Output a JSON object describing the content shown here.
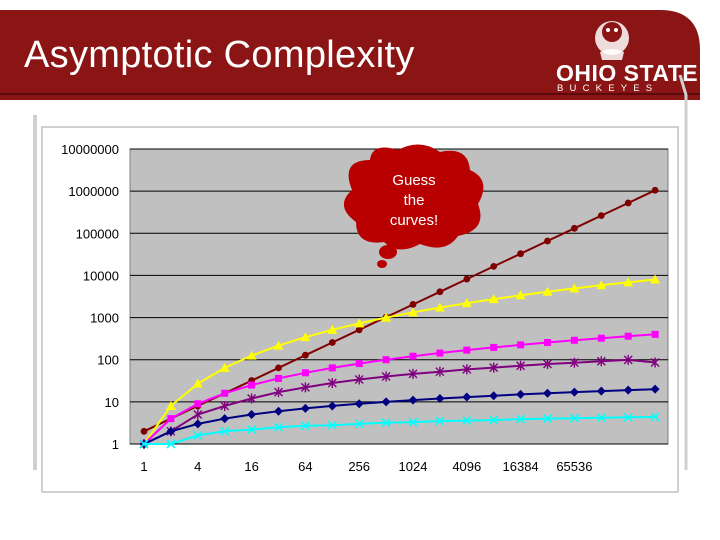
{
  "slide": {
    "title": "Asymptotic Complexity",
    "logo_text": "OHIO STATE",
    "logo_subtext": "BUCKEYES"
  },
  "callout": {
    "lines": [
      "Guess",
      "the",
      "curves!"
    ]
  },
  "chart_data": {
    "type": "line",
    "title": "",
    "xlabel": "",
    "ylabel": "",
    "y_scale": "log10",
    "ylim": [
      1,
      10000000
    ],
    "ytick_labels": [
      "1",
      "10",
      "100",
      "1000",
      "10000",
      "100000",
      "1000000",
      "10000000"
    ],
    "x": [
      1,
      2,
      4,
      8,
      16,
      32,
      64,
      128,
      256,
      512,
      1024,
      2048,
      4096,
      8192,
      16384,
      32768,
      65536,
      131072,
      262144,
      524288
    ],
    "xtick_labels": [
      "1",
      "",
      "4",
      "",
      "16",
      "",
      "64",
      "",
      "256",
      "",
      "1024",
      "",
      "4096",
      "",
      "16384",
      "",
      "65536",
      "",
      "",
      ""
    ],
    "grid": true,
    "plot_background": "#c0c0c0",
    "series": [
      {
        "color": "#800000",
        "marker": "circle",
        "values": [
          2,
          4,
          8,
          16,
          32,
          64,
          128,
          256,
          512,
          1024,
          2048,
          4096,
          8192,
          16384,
          32768,
          65536,
          131072,
          262144,
          524288,
          1048576
        ]
      },
      {
        "color": "#ffff00",
        "marker": "triangle",
        "values": [
          1,
          8,
          27,
          64,
          125,
          216,
          343,
          512,
          729,
          1000,
          1331,
          1728,
          2197,
          2744,
          3375,
          4096,
          4913,
          5832,
          6859,
          8000
        ]
      },
      {
        "color": "#ff00ff",
        "marker": "square",
        "values": [
          1,
          4,
          9,
          16,
          25,
          36,
          49,
          64,
          81,
          100,
          121,
          144,
          169,
          196,
          225,
          256,
          289,
          324,
          361,
          400
        ]
      },
      {
        "color": "#800080",
        "marker": "star",
        "values": [
          1,
          2,
          5,
          8,
          12,
          17,
          22,
          28,
          34,
          40,
          46,
          52,
          59,
          65,
          72,
          79,
          85,
          92,
          99,
          86
        ]
      },
      {
        "color": "#000080",
        "marker": "diamond",
        "values": [
          1,
          2,
          3,
          4,
          5,
          6,
          7,
          8,
          9,
          10,
          11,
          12,
          13,
          14,
          15,
          16,
          17,
          18,
          19,
          20
        ]
      },
      {
        "color": "#00ffff",
        "marker": "x",
        "values": [
          1,
          1,
          1.6,
          2,
          2.2,
          2.5,
          2.7,
          2.8,
          3,
          3.2,
          3.3,
          3.5,
          3.6,
          3.7,
          3.9,
          4,
          4.1,
          4.2,
          4.3,
          4.4
        ]
      }
    ]
  }
}
